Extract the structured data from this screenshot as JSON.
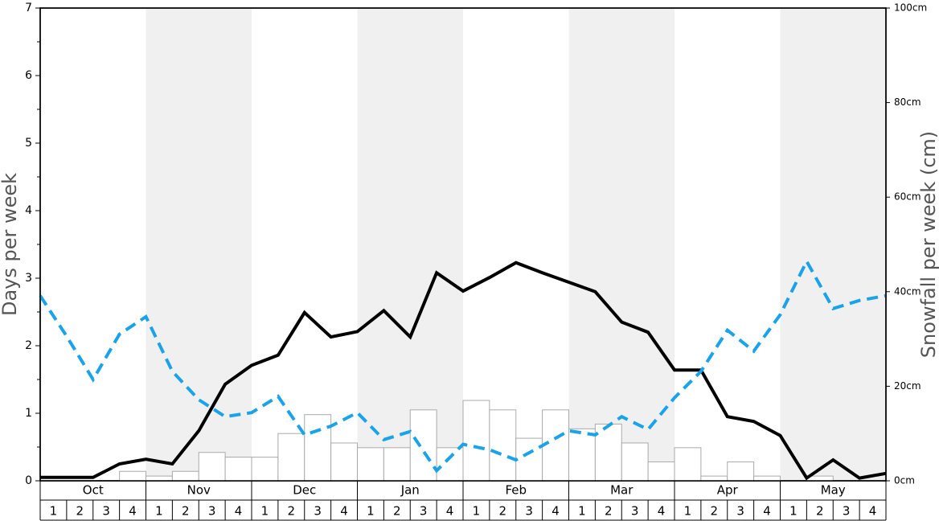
{
  "chart_data": {
    "type": "combo",
    "y_label": "Days per week",
    "y2_label": "Snowfall per week (cm)",
    "months": [
      "Oct",
      "Nov",
      "Dec",
      "Jan",
      "Feb",
      "Mar",
      "Apr",
      "May"
    ],
    "categories": [
      "1",
      "2",
      "3",
      "4",
      "1",
      "2",
      "3",
      "4",
      "1",
      "2",
      "3",
      "4",
      "1",
      "2",
      "3",
      "4",
      "1",
      "2",
      "3",
      "4",
      "1",
      "2",
      "3",
      "4",
      "1",
      "2",
      "3",
      "4",
      "1",
      "2",
      "3",
      "4"
    ],
    "x": [
      0,
      1,
      2,
      3,
      4,
      5,
      6,
      7,
      8,
      9,
      10,
      11,
      12,
      13,
      14,
      15,
      16,
      17,
      18,
      19,
      20,
      21,
      22,
      23,
      24,
      25,
      26,
      27,
      28,
      29,
      30,
      31,
      32
    ],
    "xlim": [
      0,
      32
    ],
    "ylim": [
      0,
      7
    ],
    "yticks": [
      0,
      1,
      2,
      3,
      4,
      5,
      6,
      7
    ],
    "yminorticks": [
      0.5,
      1.5,
      2.5,
      3.5,
      4.5,
      5.5,
      6.5
    ],
    "y2lim": [
      0,
      100
    ],
    "y2ticks": [
      {
        "value": 0,
        "label": "0cm"
      },
      {
        "value": 20,
        "label": "20cm"
      },
      {
        "value": 40,
        "label": "40cm"
      },
      {
        "value": 60,
        "label": "60cm"
      },
      {
        "value": 80,
        "label": "80cm"
      },
      {
        "value": 100,
        "label": "100cm"
      }
    ],
    "shade_color": "#f0f0f0",
    "series": [
      {
        "type": "bar",
        "axis": "y2",
        "color": "#ffffff",
        "edge_color": "#aaaaaa",
        "values": [
          0,
          0,
          0,
          2,
          1,
          2,
          6,
          5,
          5,
          10,
          14,
          8,
          7,
          7,
          15,
          7,
          17,
          15,
          9,
          15,
          11,
          12,
          8,
          4,
          7,
          1,
          4,
          1,
          0,
          1,
          0,
          0
        ]
      },
      {
        "type": "line",
        "color": "#000000",
        "values": [
          0.05,
          0.05,
          0.05,
          0.25,
          0.32,
          0.25,
          0.74,
          1.43,
          1.71,
          1.86,
          2.49,
          2.13,
          2.21,
          2.52,
          2.13,
          3.08,
          2.81,
          3.01,
          3.23,
          3.08,
          2.94,
          2.8,
          2.35,
          2.2,
          1.64,
          1.64,
          0.95,
          0.88,
          0.67,
          0.04,
          0.31,
          0.04,
          0.11
        ]
      },
      {
        "type": "line",
        "color": "#1aa3e8",
        "dashed": true,
        "values": [
          2.74,
          2.14,
          1.5,
          2.17,
          2.43,
          1.62,
          1.2,
          0.95,
          1.01,
          1.25,
          0.68,
          0.81,
          1.01,
          0.61,
          0.73,
          0.15,
          0.54,
          0.46,
          0.31,
          0.52,
          0.74,
          0.68,
          0.95,
          0.76,
          1.23,
          1.62,
          2.23,
          1.92,
          2.46,
          3.25,
          2.55,
          2.67,
          2.74
        ]
      }
    ]
  }
}
